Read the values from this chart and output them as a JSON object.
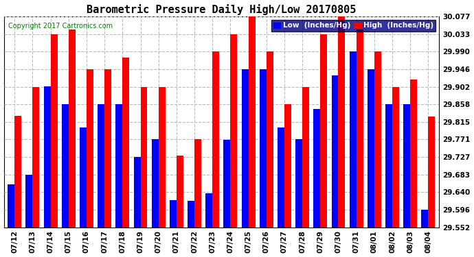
{
  "title": "Barometric Pressure Daily High/Low 20170805",
  "copyright": "Copyright 2017 Cartronics.com",
  "dates": [
    "07/12",
    "07/13",
    "07/14",
    "07/15",
    "07/16",
    "07/17",
    "07/18",
    "07/19",
    "07/20",
    "07/21",
    "07/22",
    "07/23",
    "07/24",
    "07/25",
    "07/26",
    "07/27",
    "07/28",
    "07/29",
    "07/30",
    "07/31",
    "08/01",
    "08/02",
    "08/03",
    "08/04"
  ],
  "low": [
    29.659,
    29.683,
    29.903,
    29.858,
    29.8,
    29.858,
    29.858,
    29.727,
    29.771,
    29.62,
    29.618,
    29.636,
    29.77,
    29.946,
    29.946,
    29.8,
    29.771,
    29.847,
    29.93,
    29.99,
    29.946,
    29.858,
    29.858,
    29.596
  ],
  "high": [
    29.83,
    29.902,
    30.033,
    30.044,
    29.946,
    29.946,
    29.975,
    29.902,
    29.902,
    29.73,
    29.771,
    29.99,
    30.033,
    30.077,
    29.99,
    29.858,
    29.902,
    30.033,
    30.077,
    30.044,
    29.99,
    29.902,
    29.92,
    29.828
  ],
  "ymin": 29.552,
  "ymax": 30.077,
  "yticks": [
    29.552,
    29.596,
    29.64,
    29.683,
    29.727,
    29.771,
    29.815,
    29.858,
    29.902,
    29.946,
    29.99,
    30.033,
    30.077
  ],
  "bar_width": 0.38,
  "low_color": "#0000FF",
  "high_color": "#FF0000",
  "bg_color": "#FFFFFF",
  "grid_color": "#BBBBBB",
  "title_fontsize": 11,
  "tick_fontsize": 7.5,
  "label_fontsize": 7.5
}
